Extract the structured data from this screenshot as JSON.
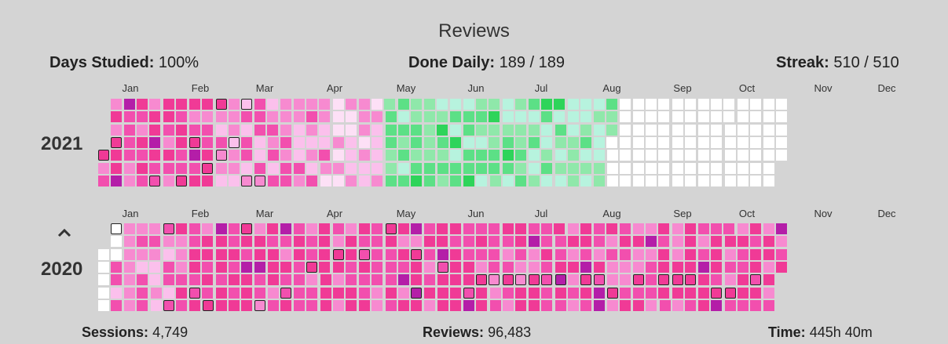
{
  "header": {
    "title": "Reviews"
  },
  "stats_top": [
    {
      "label": "Days Studied:",
      "value": "100%"
    },
    {
      "label": "Done Daily:",
      "value": "189 / 189"
    },
    {
      "label": "Streak:",
      "value": "510 / 510"
    }
  ],
  "stats_bottom": [
    {
      "label": "Sessions:",
      "value": "4,749"
    },
    {
      "label": "Reviews:",
      "value": "96,483"
    },
    {
      "label": "Time:",
      "value": "445h 40m"
    }
  ],
  "years": [
    "2021",
    "2020"
  ],
  "months": [
    "Jan",
    "Feb",
    "Mar",
    "Apr",
    "May",
    "Jun",
    "Jul",
    "Aug",
    "Sep",
    "Oct",
    "Nov",
    "Dec"
  ],
  "palette": {
    "dark_pink": "#f03a96",
    "pink": "#f24fae",
    "light_pink": "#f78ad0",
    "pale_pink": "#fbc0ec",
    "very_pale_pink": "#fde0f6",
    "magenta": "#b41ea8",
    "green_dark": "#2ed45a",
    "green": "#5ce086",
    "green_light": "#8fe8aa",
    "mint": "#b7f3de",
    "empty": "#ffffff"
  }
}
